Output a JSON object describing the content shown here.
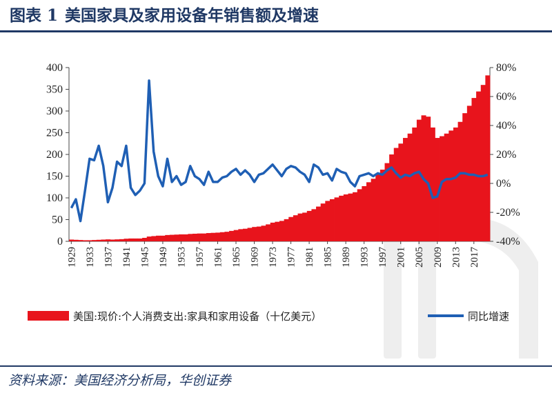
{
  "header": {
    "figure_label": "图表 1",
    "title": "美国家具及家用设备年销售额及增速"
  },
  "footer": {
    "source": "资料来源：美国经济分析局，华创证券"
  },
  "colors": {
    "bars": "#e8141c",
    "line": "#1f5fb4",
    "title": "#1f3864"
  },
  "chart_data": {
    "type": "bar",
    "title": "",
    "x_tick_labels": [
      "1929",
      "1933",
      "1937",
      "1941",
      "1945",
      "1949",
      "1953",
      "1957",
      "1961",
      "1965",
      "1969",
      "1973",
      "1977",
      "1981",
      "1985",
      "1989",
      "1993",
      "1997",
      "2001",
      "2005",
      "2009",
      "2013",
      "2017"
    ],
    "x": [
      1929,
      1930,
      1931,
      1932,
      1933,
      1934,
      1935,
      1936,
      1937,
      1938,
      1939,
      1940,
      1941,
      1942,
      1943,
      1944,
      1945,
      1946,
      1947,
      1948,
      1949,
      1950,
      1951,
      1952,
      1953,
      1954,
      1955,
      1956,
      1957,
      1958,
      1959,
      1960,
      1961,
      1962,
      1963,
      1964,
      1965,
      1966,
      1967,
      1968,
      1969,
      1970,
      1971,
      1972,
      1973,
      1974,
      1975,
      1976,
      1977,
      1978,
      1979,
      1980,
      1981,
      1982,
      1983,
      1984,
      1985,
      1986,
      1987,
      1988,
      1989,
      1990,
      1991,
      1992,
      1993,
      1994,
      1995,
      1996,
      1997,
      1998,
      1999,
      2000,
      2001,
      2002,
      2003,
      2004,
      2005,
      2006,
      2007,
      2008,
      2009,
      2010,
      2011,
      2012,
      2013,
      2014,
      2015,
      2016,
      2017,
      2018,
      2019,
      2020
    ],
    "left_axis": {
      "range": [
        0,
        400
      ],
      "ticks": [
        "0",
        "50",
        "100",
        "150",
        "200",
        "250",
        "300",
        "350",
        "400"
      ]
    },
    "right_axis": {
      "range": [
        -40,
        80
      ],
      "ticks": [
        "-40%",
        "-20%",
        "0%",
        "20%",
        "40%",
        "60%",
        "80%"
      ]
    },
    "series": [
      {
        "name": "美国:现价:个人消费支出:家具和家用设备（十亿美元）",
        "type": "bar",
        "axis": "left",
        "values": [
          4,
          3.5,
          3,
          2.5,
          2.5,
          3,
          3.5,
          4,
          4.5,
          4,
          4.5,
          5,
          6,
          6.5,
          6.5,
          6.5,
          8,
          11,
          12,
          13,
          13,
          14.5,
          15,
          15.5,
          16,
          16,
          17,
          17.5,
          18,
          18,
          19,
          19.5,
          20,
          21,
          22,
          24,
          26,
          28,
          29,
          31,
          33,
          34,
          36,
          39,
          43,
          45,
          47,
          51,
          56,
          60,
          64,
          66,
          70,
          74,
          80,
          87,
          93,
          97,
          101,
          105,
          108,
          110,
          113,
          120,
          127,
          136,
          144,
          154,
          165,
          180,
          200,
          215,
          225,
          238,
          248,
          262,
          280,
          290,
          287,
          262,
          238,
          242,
          248,
          255,
          262,
          275,
          295,
          312,
          330,
          345,
          360,
          382
        ]
      },
      {
        "name": "同比增速",
        "type": "line",
        "axis": "right",
        "values": [
          -17,
          -11,
          -26,
          -5,
          17,
          16,
          26,
          12,
          -13,
          -3,
          15,
          12,
          26,
          -3,
          -8,
          -5,
          0,
          71,
          22,
          5,
          -2,
          17,
          1,
          5,
          -1,
          1,
          12,
          5,
          3,
          -1,
          8,
          1,
          1,
          4,
          5,
          8,
          10,
          6,
          9,
          6,
          1,
          6,
          7,
          10,
          13,
          9,
          5,
          10,
          12,
          11,
          8,
          6,
          1,
          13,
          11,
          6,
          7,
          2,
          10,
          8,
          7,
          1,
          -2,
          5,
          6,
          7,
          5,
          7,
          6,
          9,
          11,
          7,
          4,
          6,
          5,
          7,
          8,
          3,
          0,
          -10,
          -9,
          1,
          3,
          3,
          4,
          7,
          7,
          6,
          6,
          5,
          5,
          6
        ]
      }
    ],
    "legend": {
      "position": "bottom"
    },
    "grid": false
  }
}
